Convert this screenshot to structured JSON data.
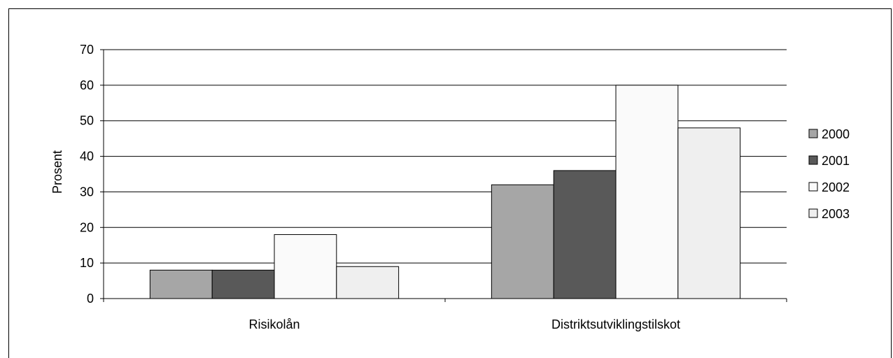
{
  "chart_data": {
    "type": "bar",
    "title": "",
    "xlabel": "",
    "ylabel": "Prosent",
    "ylim": [
      0,
      70
    ],
    "yticks": [
      0,
      10,
      20,
      30,
      40,
      50,
      60,
      70
    ],
    "grid": true,
    "legend_position": "right",
    "categories": [
      "Risikolån",
      "Distriktsutviklingstilskot"
    ],
    "series": [
      {
        "name": "2000",
        "color": "#a6a6a6",
        "values": [
          8,
          32
        ]
      },
      {
        "name": "2001",
        "color": "#595959",
        "values": [
          8,
          36
        ]
      },
      {
        "name": "2002",
        "color": "#fafafa",
        "values": [
          18,
          60
        ]
      },
      {
        "name": "2003",
        "color": "#efefef",
        "values": [
          9,
          48
        ]
      }
    ]
  }
}
